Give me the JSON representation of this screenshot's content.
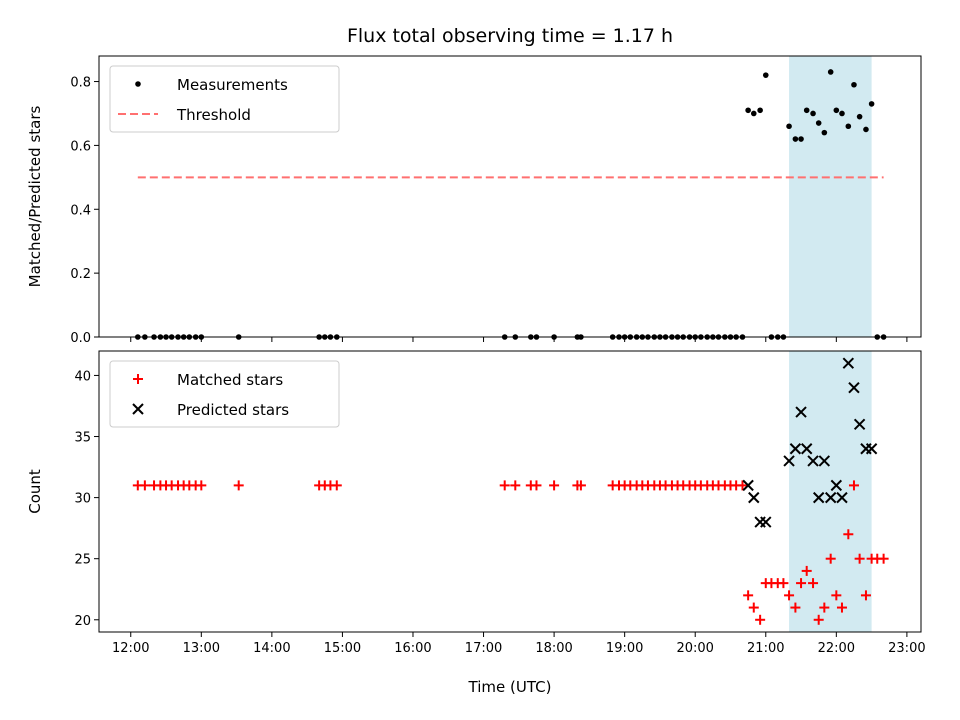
{
  "figure": {
    "title": "Flux total observing time = 1.17 h",
    "xlabel": "Time (UTC)"
  },
  "highlight": {
    "start_h": 21.33,
    "end_h": 22.5,
    "color": "#add8e6"
  },
  "chart_data": [
    {
      "type": "scatter",
      "panel": "top",
      "ylabel": "Matched/Predicted stars",
      "xlim": [
        11.55,
        23.2
      ],
      "ylim": [
        0,
        0.88
      ],
      "xticks": [
        "12:00",
        "13:00",
        "14:00",
        "15:00",
        "16:00",
        "17:00",
        "18:00",
        "19:00",
        "20:00",
        "21:00",
        "22:00",
        "23:00"
      ],
      "yticks": [
        "0.0",
        "0.2",
        "0.4",
        "0.6",
        "0.8"
      ],
      "ytick_values": [
        0,
        0.2,
        0.4,
        0.6,
        0.8
      ],
      "legend": {
        "position": "top-left",
        "entries": [
          "Measurements",
          "Threshold"
        ]
      },
      "series": [
        {
          "name": "Measurements",
          "marker": "dot",
          "color": "#000000",
          "x": [
            12.1,
            12.2,
            12.33,
            12.42,
            12.5,
            12.58,
            12.67,
            12.75,
            12.83,
            12.92,
            13.0,
            13.53,
            14.67,
            14.75,
            14.83,
            14.92,
            17.3,
            17.45,
            17.67,
            17.75,
            18.0,
            18.33,
            18.38,
            18.83,
            18.92,
            19.0,
            19.08,
            19.17,
            19.25,
            19.33,
            19.42,
            19.5,
            19.58,
            19.67,
            19.75,
            19.83,
            19.92,
            20.0,
            20.08,
            20.17,
            20.25,
            20.33,
            20.42,
            20.5,
            20.58,
            20.67,
            20.75,
            20.83,
            20.92,
            21.0,
            21.08,
            21.17,
            21.25,
            21.33,
            21.42,
            21.5,
            21.58,
            21.67,
            21.75,
            21.83,
            21.92,
            22.0,
            22.08,
            22.17,
            22.25,
            22.33,
            22.42,
            22.5,
            22.58,
            22.67
          ],
          "y": [
            0,
            0,
            0,
            0,
            0,
            0,
            0,
            0,
            0,
            0,
            0,
            0,
            0,
            0,
            0,
            0,
            0,
            0,
            0,
            0,
            0,
            0,
            0,
            0,
            0,
            0,
            0,
            0,
            0,
            0,
            0,
            0,
            0,
            0,
            0,
            0,
            0,
            0,
            0,
            0,
            0,
            0,
            0,
            0,
            0,
            0,
            0.71,
            0.7,
            0.71,
            0.82,
            0,
            0,
            0,
            0.66,
            0.62,
            0.62,
            0.71,
            0.7,
            0.67,
            0.64,
            0.83,
            0.71,
            0.7,
            0.66,
            0.79,
            0.69,
            0.65,
            0.73,
            0,
            0
          ]
        },
        {
          "name": "Threshold",
          "marker": "dashed-line",
          "color": "#ff7070",
          "x": [
            12.1,
            22.67
          ],
          "y": [
            0.5,
            0.5
          ]
        }
      ]
    },
    {
      "type": "scatter",
      "panel": "bottom",
      "ylabel": "Count",
      "xlim": [
        11.55,
        23.2
      ],
      "ylim": [
        19,
        42
      ],
      "xticks": [
        "12:00",
        "13:00",
        "14:00",
        "15:00",
        "16:00",
        "17:00",
        "18:00",
        "19:00",
        "20:00",
        "21:00",
        "22:00",
        "23:00"
      ],
      "yticks": [
        "20",
        "25",
        "30",
        "35",
        "40"
      ],
      "ytick_values": [
        20,
        25,
        30,
        35,
        40
      ],
      "legend": {
        "position": "top-left",
        "entries": [
          "Matched stars",
          "Predicted stars"
        ]
      },
      "series": [
        {
          "name": "Matched stars",
          "marker": "plus",
          "color": "#ff0000",
          "x": [
            12.1,
            12.2,
            12.33,
            12.42,
            12.5,
            12.58,
            12.67,
            12.75,
            12.83,
            12.92,
            13.0,
            13.53,
            14.67,
            14.75,
            14.83,
            14.92,
            17.3,
            17.45,
            17.67,
            17.75,
            18.0,
            18.33,
            18.38,
            18.83,
            18.92,
            19.0,
            19.08,
            19.17,
            19.25,
            19.33,
            19.42,
            19.5,
            19.58,
            19.67,
            19.75,
            19.83,
            19.92,
            20.0,
            20.08,
            20.17,
            20.25,
            20.33,
            20.42,
            20.5,
            20.58,
            20.67,
            20.75,
            20.83,
            20.92,
            21.0,
            21.08,
            21.17,
            21.25,
            21.33,
            21.42,
            21.5,
            21.58,
            21.67,
            21.75,
            21.83,
            21.92,
            22.0,
            22.08,
            22.17,
            22.25,
            22.33,
            22.42,
            22.5,
            22.58,
            22.67
          ],
          "y": [
            31,
            31,
            31,
            31,
            31,
            31,
            31,
            31,
            31,
            31,
            31,
            31,
            31,
            31,
            31,
            31,
            31,
            31,
            31,
            31,
            31,
            31,
            31,
            31,
            31,
            31,
            31,
            31,
            31,
            31,
            31,
            31,
            31,
            31,
            31,
            31,
            31,
            31,
            31,
            31,
            31,
            31,
            31,
            31,
            31,
            31,
            22,
            21,
            20,
            23,
            23,
            23,
            23,
            22,
            21,
            23,
            24,
            23,
            20,
            21,
            25,
            22,
            21,
            27,
            31,
            25,
            22,
            25,
            25,
            25
          ]
        },
        {
          "name": "Predicted stars",
          "marker": "x",
          "color": "#000000",
          "x": [
            20.75,
            20.83,
            20.92,
            21.0,
            21.33,
            21.42,
            21.5,
            21.58,
            21.67,
            21.75,
            21.83,
            21.92,
            22.0,
            22.08,
            22.17,
            22.25,
            22.33,
            22.42,
            22.5
          ],
          "y": [
            31,
            30,
            28,
            28,
            33,
            34,
            37,
            34,
            33,
            30,
            33,
            30,
            31,
            30,
            41,
            39,
            36,
            34,
            34
          ]
        }
      ]
    }
  ]
}
